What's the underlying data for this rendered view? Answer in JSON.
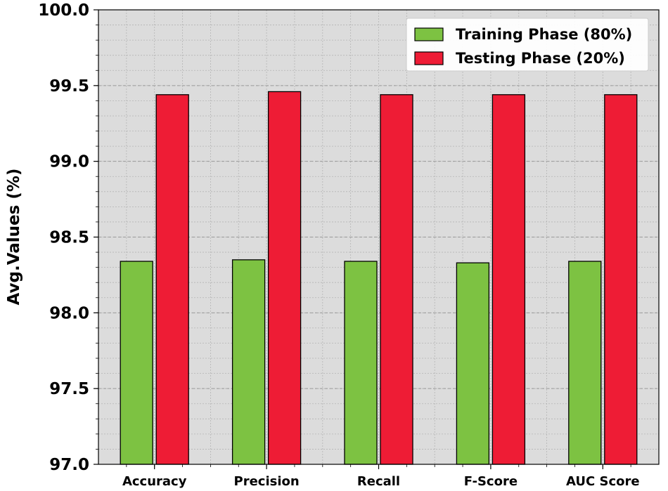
{
  "chart_data": {
    "type": "bar",
    "title": "",
    "xlabel": "",
    "ylabel": "Avg.Values (%)",
    "categories": [
      "Accuracy",
      "Precision",
      "Recall",
      "F-Score",
      "AUC Score"
    ],
    "series": [
      {
        "name": "Training Phase (80%)",
        "color": "#7dc242",
        "values": [
          98.34,
          98.35,
          98.34,
          98.33,
          98.34
        ]
      },
      {
        "name": "Testing Phase (20%)",
        "color": "#ee1c35",
        "values": [
          99.44,
          99.46,
          99.44,
          99.44,
          99.44
        ]
      }
    ],
    "ylim": [
      97.0,
      100.0
    ],
    "yticks": [
      "97.0",
      "97.5",
      "98.0",
      "98.5",
      "99.0",
      "99.5",
      "100.0"
    ],
    "grid": true,
    "legend_position": "top-right",
    "background_color": "#dcdcdc"
  }
}
